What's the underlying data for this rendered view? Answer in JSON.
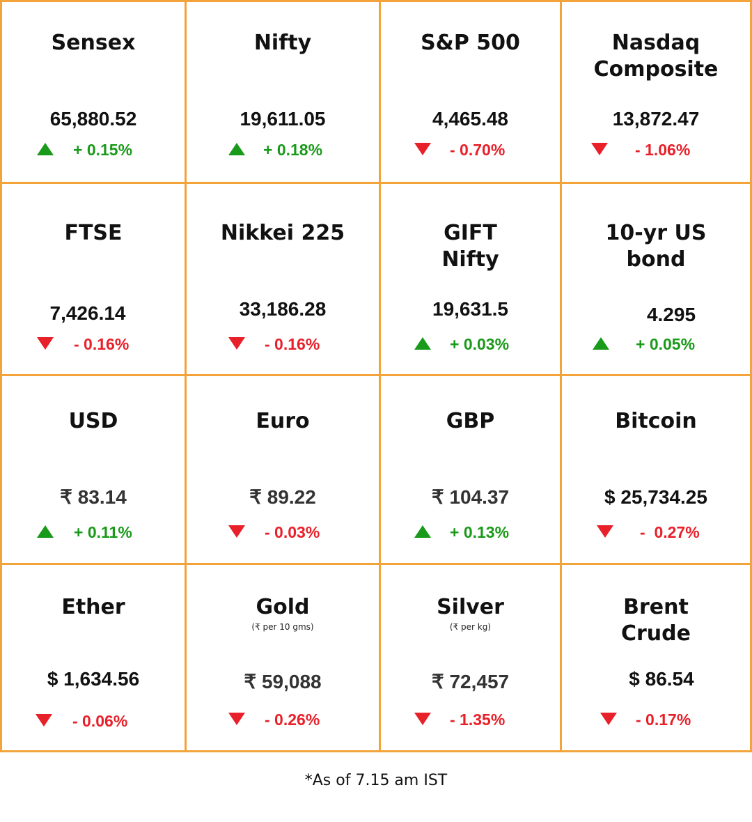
{
  "accent_border_color": "#f2a43a",
  "up_color": "#1a9a1a",
  "down_color": "#e8202a",
  "cells": [
    {
      "title": "Sensex",
      "subtitle": "",
      "value": "65,880.52",
      "direction": "up",
      "change": "+ 0.15%",
      "icon": "up-arrow-icon"
    },
    {
      "title": "Nifty",
      "subtitle": "",
      "value": "19,611.05",
      "direction": "up",
      "change": "+ 0.18%",
      "icon": "up-arrow-icon"
    },
    {
      "title": "S&P 500",
      "subtitle": "",
      "value": "4,465.48",
      "direction": "down",
      "change": "- 0.70%",
      "icon": "down-arrow-icon"
    },
    {
      "title": "Nasdaq Composite",
      "subtitle": "",
      "value": "13,872.47",
      "direction": "down",
      "change": "- 1.06%",
      "icon": "down-arrow-icon"
    },
    {
      "title": "FTSE",
      "subtitle": "",
      "value": "7,426.14",
      "direction": "down",
      "change": "- 0.16%",
      "icon": "down-arrow-icon"
    },
    {
      "title": "Nikkei 225",
      "subtitle": "",
      "value": "33,186.28",
      "direction": "down",
      "change": "- 0.16%",
      "icon": "down-arrow-icon"
    },
    {
      "title": "GIFT Nifty",
      "subtitle": "",
      "value": "19,631.5",
      "direction": "up",
      "change": "+ 0.03%",
      "icon": "up-arrow-icon"
    },
    {
      "title": "10-yr US bond",
      "subtitle": "",
      "value": "4.295",
      "direction": "up",
      "change": "+ 0.05%",
      "icon": "up-arrow-icon"
    },
    {
      "title": "USD",
      "subtitle": "",
      "value": "₹ 83.14",
      "direction": "up",
      "change": "+ 0.11%",
      "icon": "up-arrow-icon"
    },
    {
      "title": "Euro",
      "subtitle": "",
      "value": "₹ 89.22",
      "direction": "down",
      "change": "- 0.03%",
      "icon": "down-arrow-icon"
    },
    {
      "title": "GBP",
      "subtitle": "",
      "value": "₹ 104.37",
      "direction": "up",
      "change": "+ 0.13%",
      "icon": "up-arrow-icon"
    },
    {
      "title": "Bitcoin",
      "subtitle": "",
      "value": "$ 25,734.25",
      "direction": "down",
      "change": "-  0.27%",
      "icon": "down-arrow-icon"
    },
    {
      "title": "Ether",
      "subtitle": "",
      "value": "$ 1,634.56",
      "direction": "down",
      "change": "- 0.06%",
      "icon": "down-arrow-icon"
    },
    {
      "title": "Gold",
      "subtitle": "(₹ per 10 gms)",
      "value": "₹ 59,088",
      "direction": "down",
      "change": "- 0.26%",
      "icon": "down-arrow-icon"
    },
    {
      "title": "Silver",
      "subtitle": "(₹ per kg)",
      "value": "₹ 72,457",
      "direction": "down",
      "change": "- 1.35%",
      "icon": "down-arrow-icon"
    },
    {
      "title": "Brent Crude",
      "subtitle": "",
      "value": "$ 86.54",
      "direction": "down",
      "change": "- 0.17%",
      "icon": "down-arrow-icon"
    }
  ],
  "footnote": "*As of 7.15 am IST"
}
